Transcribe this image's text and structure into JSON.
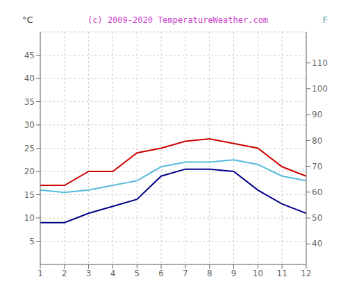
{
  "chart_data": {
    "type": "line",
    "title": "(c) 2009-2020 TemperatureWeather.com",
    "ylabel": "°C",
    "y2label": "F",
    "x": [
      1,
      2,
      3,
      4,
      5,
      6,
      7,
      8,
      9,
      10,
      11,
      12
    ],
    "series": [
      {
        "color": "#cc0000",
        "values": [
          17,
          17,
          20,
          20,
          24,
          25,
          26.5,
          27,
          26,
          25,
          21,
          19
        ]
      },
      {
        "color": "#55bbdd",
        "values": [
          16,
          15.5,
          16,
          17,
          18,
          21,
          22,
          22,
          22.5,
          21.5,
          19,
          18
        ]
      },
      {
        "color": "#000088",
        "values": [
          9,
          9,
          11,
          12.5,
          14,
          19,
          20.5,
          20.5,
          20,
          16,
          13,
          11
        ]
      }
    ],
    "xlim": [
      1,
      12
    ],
    "xticks": [
      1,
      2,
      3,
      4,
      5,
      6,
      7,
      8,
      9,
      10,
      11,
      12
    ],
    "ylim": [
      0,
      50
    ],
    "yticks": [
      5,
      10,
      15,
      20,
      25,
      30,
      35,
      40,
      45
    ],
    "y2lim": [
      32,
      122
    ],
    "y2ticks": [
      40,
      50,
      60,
      70,
      80,
      90,
      100,
      110
    ],
    "grid": true
  }
}
